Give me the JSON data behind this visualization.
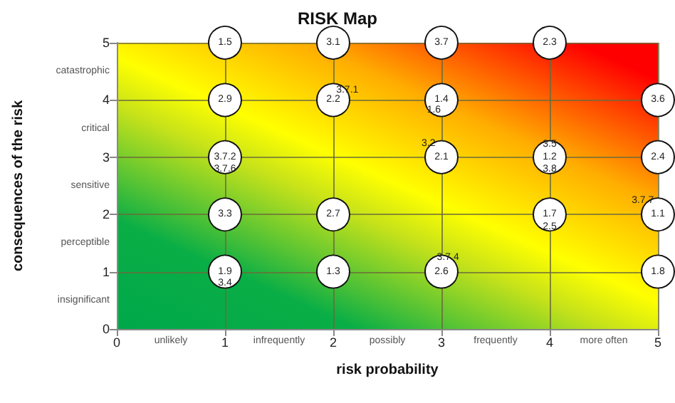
{
  "chart_data": {
    "type": "scatter",
    "title": "RISK Map",
    "xlabel": "risk probability",
    "ylabel": "consequences of the risk",
    "x": [
      1,
      2,
      3,
      4,
      1,
      2,
      3,
      5,
      1,
      3,
      4,
      5,
      1,
      2,
      4,
      5,
      1,
      2,
      3,
      5
    ],
    "series": [
      {
        "color": "#ffffff",
        "values": [
          5,
          5,
          5,
          5,
          4,
          4,
          4,
          4,
          3,
          3,
          3,
          3,
          2,
          2,
          2,
          2,
          1,
          1,
          1,
          1
        ]
      }
    ],
    "xlim": [
      0,
      5
    ],
    "ylim": [
      0,
      5
    ],
    "xticks": [
      0,
      1,
      2,
      3,
      4,
      5,
      {
        "value": 0.5,
        "label": "unlikely"
      },
      {
        "value": 1.5,
        "label": "infrequently"
      },
      {
        "value": 2.5,
        "label": "possibly"
      },
      {
        "value": 3.5,
        "label": "frequently"
      },
      {
        "value": 4.5,
        "label": "more often"
      }
    ],
    "yticks": [
      0,
      1,
      2,
      3,
      4,
      5,
      {
        "value": 0.5,
        "label": "insignificant"
      },
      {
        "value": 1.5,
        "label": "perceptible"
      },
      {
        "value": 2.5,
        "label": "sensitive"
      },
      {
        "value": 3.5,
        "label": "critical"
      },
      {
        "value": 4.5,
        "label": "catastrophic"
      }
    ],
    "annotations": [
      {
        "text": "1.5",
        "x": 1,
        "y": 5
      },
      {
        "text": "3.1",
        "x": 2,
        "y": 5
      },
      {
        "text": "3.7",
        "x": 3,
        "y": 5
      },
      {
        "text": "2.3",
        "x": 4,
        "y": 5
      },
      {
        "text": "2.9",
        "x": 1,
        "y": 4
      },
      {
        "text": "2.2",
        "x": 2,
        "y": 4
      },
      {
        "text": "1.4",
        "x": 3,
        "y": 4
      },
      {
        "text": "3.6",
        "x": 5,
        "y": 4
      },
      {
        "text": "3.7.2",
        "x": 1,
        "y": 3
      },
      {
        "text": "2.1",
        "x": 3,
        "y": 3
      },
      {
        "text": "1.2",
        "x": 4,
        "y": 3
      },
      {
        "text": "2.4",
        "x": 5,
        "y": 3
      },
      {
        "text": "3.3",
        "x": 1,
        "y": 2
      },
      {
        "text": "2.7",
        "x": 2,
        "y": 2
      },
      {
        "text": "1.7",
        "x": 4,
        "y": 2
      },
      {
        "text": "1.1",
        "x": 5,
        "y": 2
      },
      {
        "text": "1.9",
        "x": 1,
        "y": 1
      },
      {
        "text": "1.3",
        "x": 2,
        "y": 1
      },
      {
        "text": "2.6",
        "x": 3,
        "y": 1
      },
      {
        "text": "1.8",
        "x": 5,
        "y": 1
      },
      {
        "text": "3.7.1",
        "x": 2.13,
        "y": 4.17
      },
      {
        "text": "1.6",
        "x": 2.93,
        "y": 3.82
      },
      {
        "text": "3.7.6",
        "x": 1,
        "y": 2.78
      },
      {
        "text": "3.2",
        "x": 2.88,
        "y": 3.24
      },
      {
        "text": "3.5",
        "x": 4,
        "y": 3.22
      },
      {
        "text": "3.8",
        "x": 4,
        "y": 2.78
      },
      {
        "text": "3.7.7",
        "x": 4.86,
        "y": 2.24
      },
      {
        "text": "2.5",
        "x": 4,
        "y": 1.78
      },
      {
        "text": "3.7.4",
        "x": 3.06,
        "y": 1.24
      },
      {
        "text": "3.4",
        "x": 1,
        "y": 0.8
      }
    ],
    "grid": true,
    "marker": "circle"
  }
}
